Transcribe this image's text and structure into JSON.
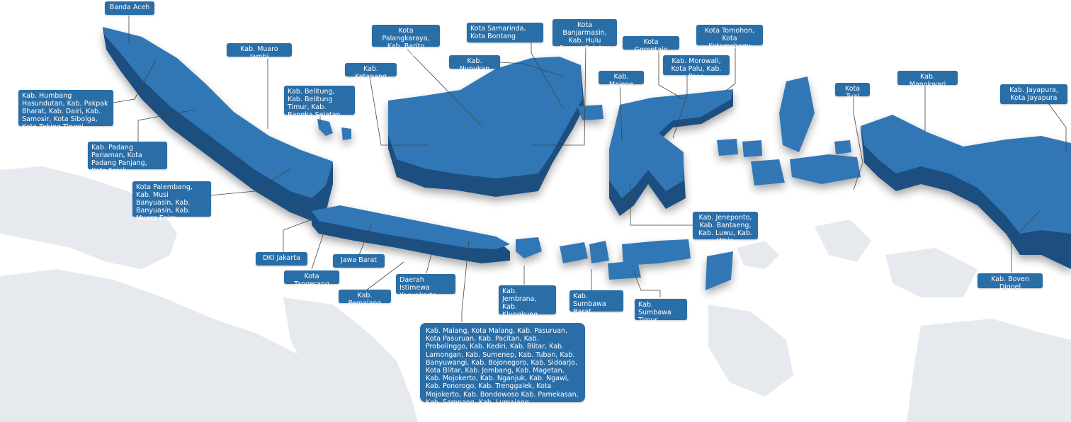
{
  "map": {
    "colors": {
      "island_top": "#3377b5",
      "island_side": "#1d4f80",
      "label_bg": "#2a6ea8",
      "label_text": "#ffffff",
      "background_land": "#e6e9ee",
      "connector": "#444444"
    },
    "labels": {
      "banda_aceh": "Banda Aceh",
      "humbang": "Kab. Humbang Hasundutan, Kab. Pakpak Bharat, Kab. Dairi, Kab. Samosir, Kota Sibolga, Kota Tebing Tinggi",
      "padang": "Kab. Padang Pariaman, Kota Padang Panjang, Kota Solok",
      "muaro_jambi": "Kab. Muaro Jambi",
      "palembang": "Kota Palembang, Kab. Musi Banyuasin, Kab. Banyuasin, Kab. Muara Enim",
      "belitung": "Kab. Belitung, Kab. Belitung Timur, Kab. Bangka Selatan",
      "dki_jakarta": "DKI Jakarta",
      "kota_tangerang": "Kota Tangerang",
      "jawa_barat": "Jawa Barat",
      "pemalang": "Kab. Pemalang",
      "yogyakarta": "Daerah Istimewa Yogyakarta",
      "ketapang": "Kab. Ketapang",
      "palangkaraya": "Kota Palangkaraya, Kab. Barito Selatan",
      "samarinda": "Kota Samarinda, Kota Bontang",
      "nunukan": "Kab. Nunukan",
      "banjarmasin": "Kota Banjarmasin, Kab. Hulu Sungai Selatan",
      "gorontalo": "Kota Gorontalo",
      "tomohon": "Kota Tomohon, Kota Kotamobagu",
      "morowali": "Kab. Morowali, Kota Palu, Kab. Poso",
      "majene": "Kab. Majene",
      "jeneponto": "Kab. Jeneponto, Kab. Bantaeng, Kab. Luwu, Kab. Wajo",
      "jembrana": "Kab. Jembrana, Kab. Klungkung, Kab. Tabanan",
      "sumbawa_barat": "Kab. Sumbawa Barat",
      "sumbawa_timur": "Kab. Sumbawa Timur",
      "jawa_timur": "Kab. Malang, Kota Malang, Kab. Pasuruan, Kota Pasuruan, Kab. Pacitan, Kab. Probolinggo, Kab. Kediri, Kab. Blitar, Kab. Lamongan, Kab. Sumenep, Kab. Tuban, Kab. Banyuwangi, Kab. Bojonegoro, Kab. Sidoarjo, Kota Blitar, Kab.  Jombang, Kab. Magetan, Kab. Mojokerto, Kab. Nganjuk, Kab. Ngawi, Kab. Ponorogo, Kab. Trenggalek, Kota Mojokerto, Kab. Bondowoso Kab. Pamekasan, Kab. Sampang, Kab. Lumajang",
      "kota_tual": "Kota Tual",
      "manokwari": "Kab. Manokwari",
      "jayapura": "Kab. Jayapura, Kota Jayapura",
      "boven_digoel": "Kab. Boven Digoel"
    }
  }
}
